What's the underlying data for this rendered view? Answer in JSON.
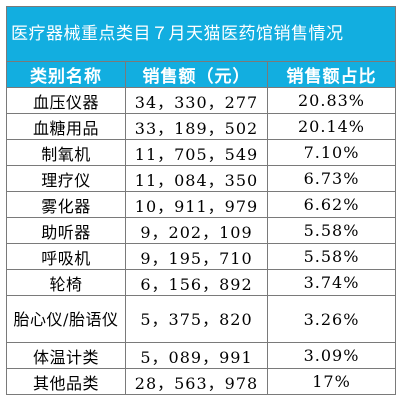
{
  "title": "医疗器械重点类目７月天猫医药馆销售情况",
  "headers": [
    "类别名称",
    "销售额（元）",
    "销售额占比"
  ],
  "rows": [
    {
      "category": "血压仪器",
      "sales": "34，330，277",
      "share": "20.83%"
    },
    {
      "category": "血糖用品",
      "sales": "33，189，502",
      "share": "20.14%"
    },
    {
      "category": "制氧机",
      "sales": "11，705，549",
      "share": "7.10%"
    },
    {
      "category": "理疗仪",
      "sales": "11，084，350",
      "share": "6.73%"
    },
    {
      "category": "雾化器",
      "sales": "10，911，979",
      "share": "6.62%"
    },
    {
      "category": "助听器",
      "sales": "9，202，109",
      "share": "5.58%"
    },
    {
      "category": "呼吸机",
      "sales": "9，195，710",
      "share": "5.58%"
    },
    {
      "category": "轮椅",
      "sales": "6，156，892",
      "share": "3.74%"
    },
    {
      "category": "胎心仪/胎语仪",
      "sales": "5，375，820",
      "share": "3.26%"
    },
    {
      "category": "体温计类",
      "sales": "5，089，991",
      "share": "3.09%"
    },
    {
      "category": "其他品类",
      "sales": "28，563，978",
      "share": "17%"
    }
  ],
  "colors": {
    "header_bg": "#12aee0",
    "header_text": "#ffffff",
    "border": "#7a7a7a"
  }
}
